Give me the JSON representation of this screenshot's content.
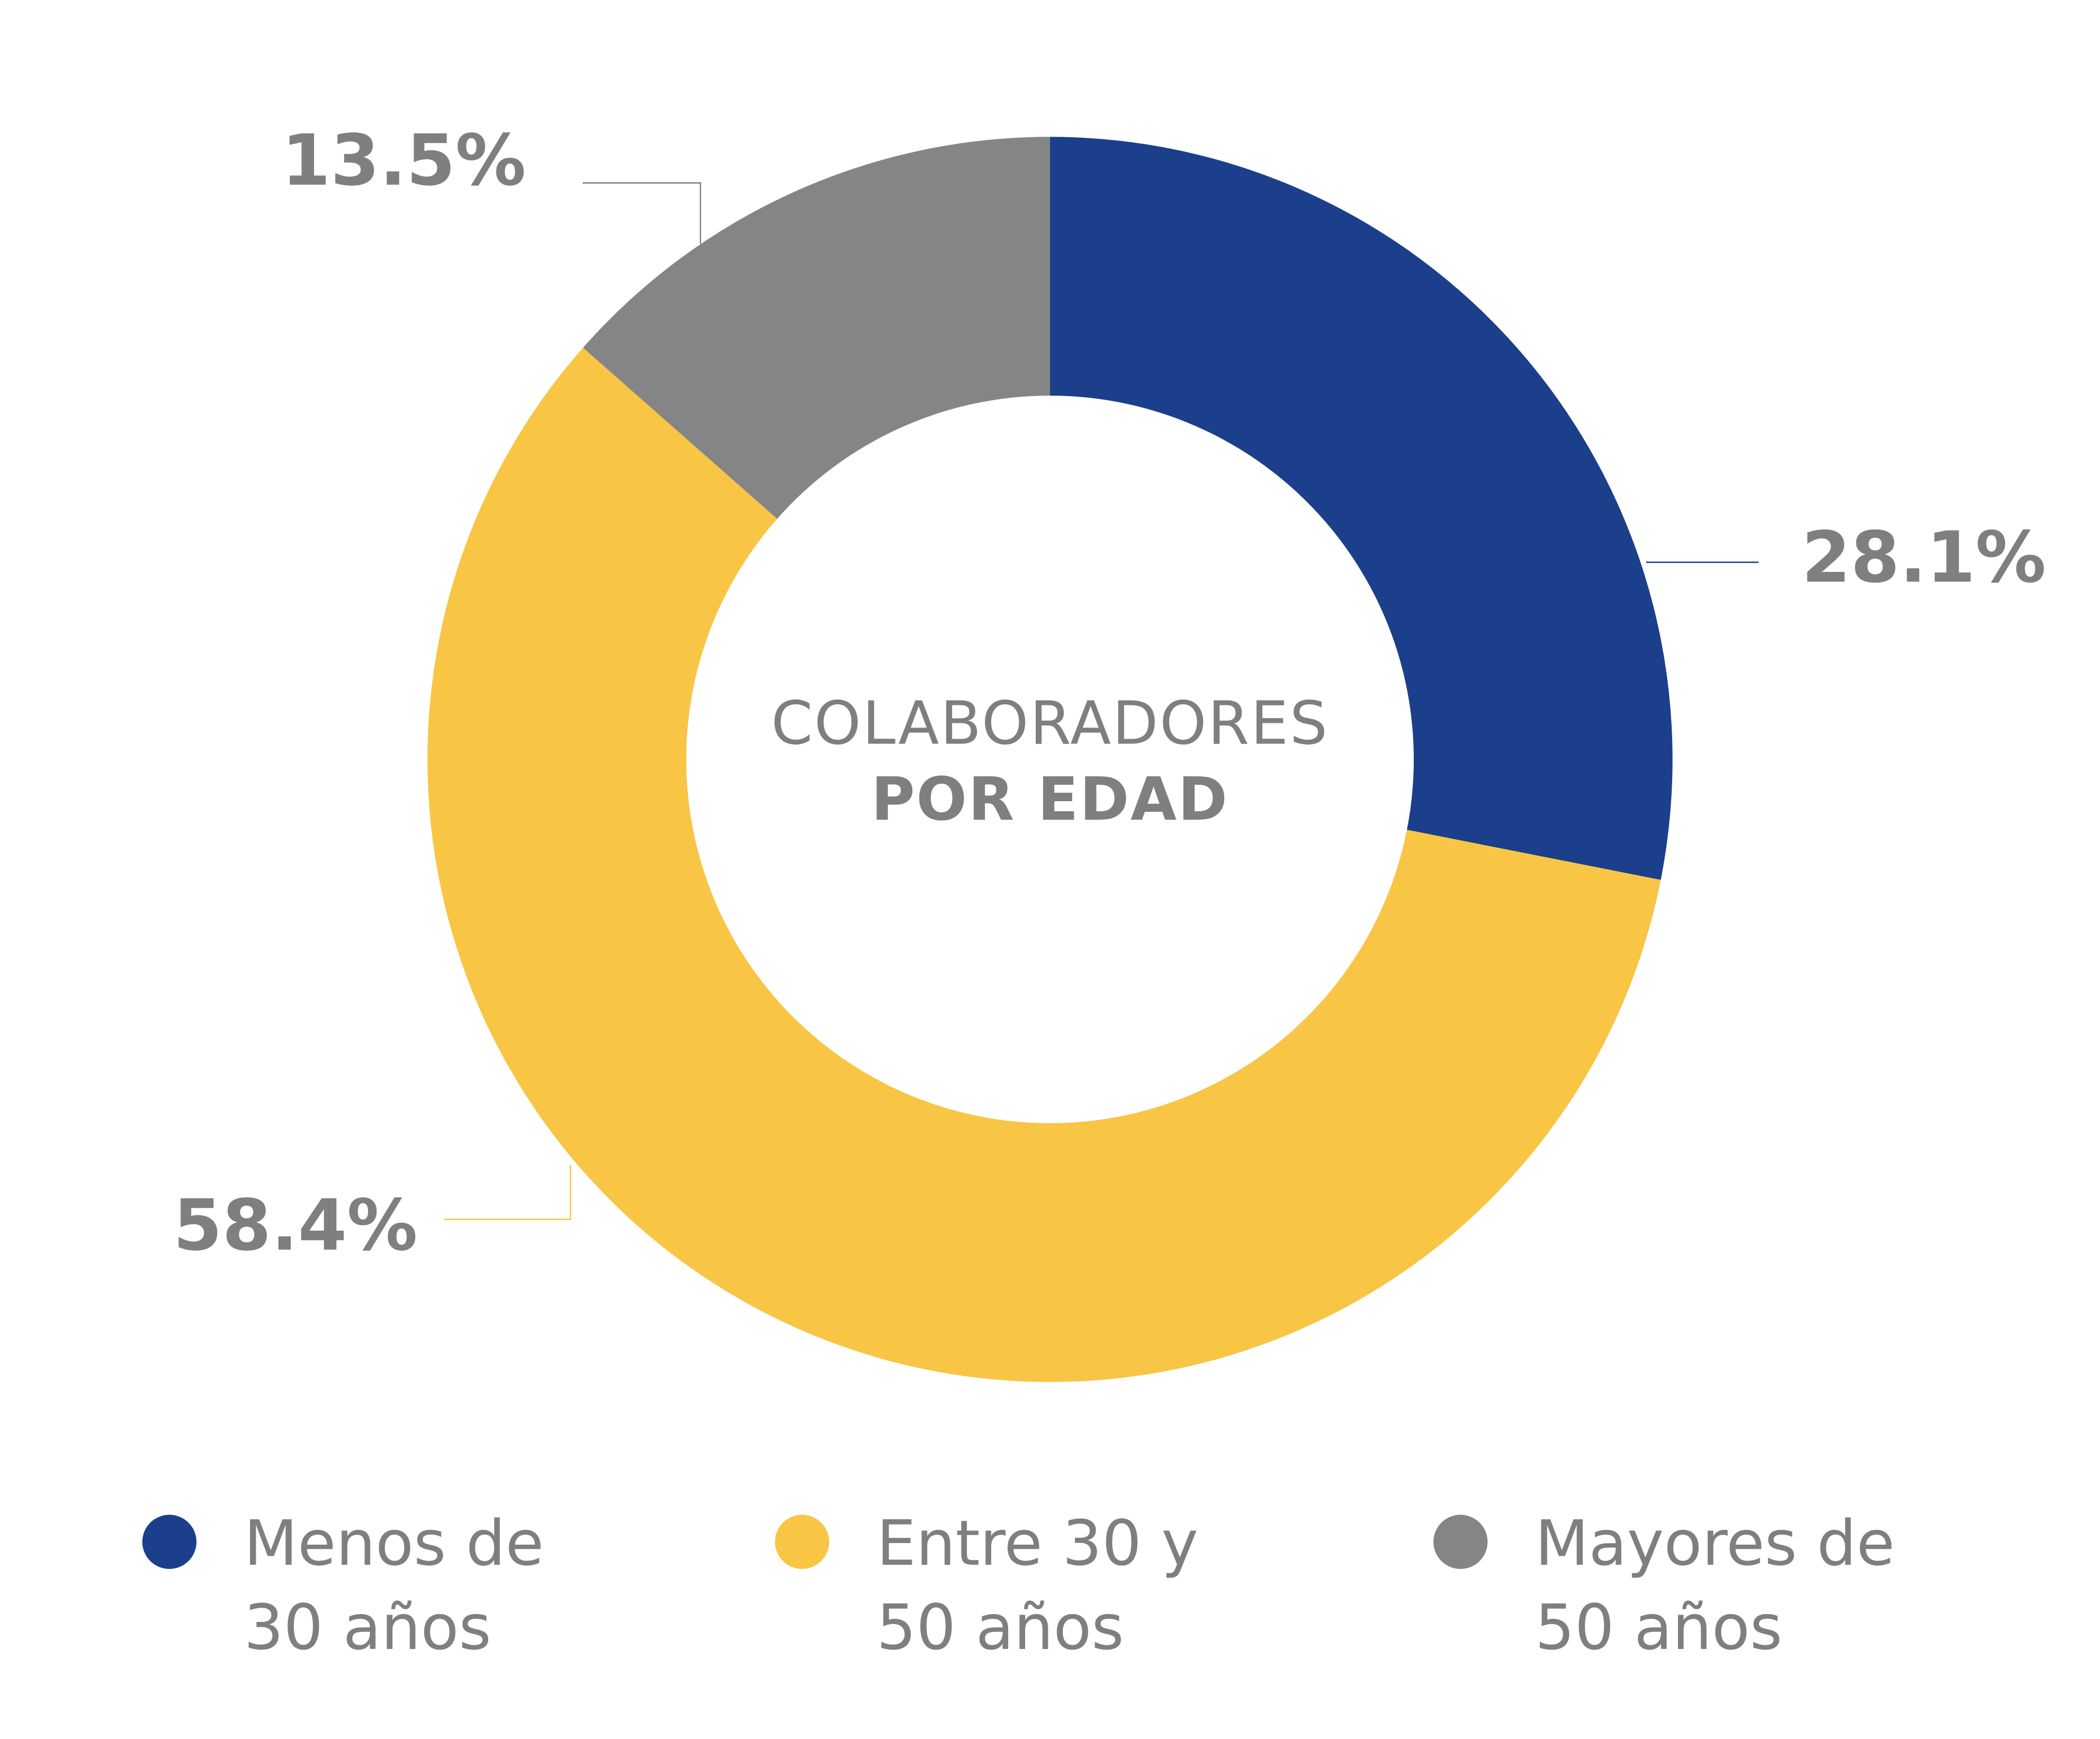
{
  "chart_data": {
    "type": "donut",
    "title": "COLABORADORES",
    "subtitle": "POR EDAD",
    "categories": [
      "Menos de 30 años",
      "Entre 30 y 50 años",
      "Mayores de 50 años"
    ],
    "values": [
      28.1,
      58.4,
      13.5
    ],
    "value_labels": [
      "28.1%",
      "58.4%",
      "13.5%"
    ],
    "colors": [
      "#1b3f8a",
      "#f8c544",
      "#858585"
    ],
    "legend": "bottom"
  }
}
